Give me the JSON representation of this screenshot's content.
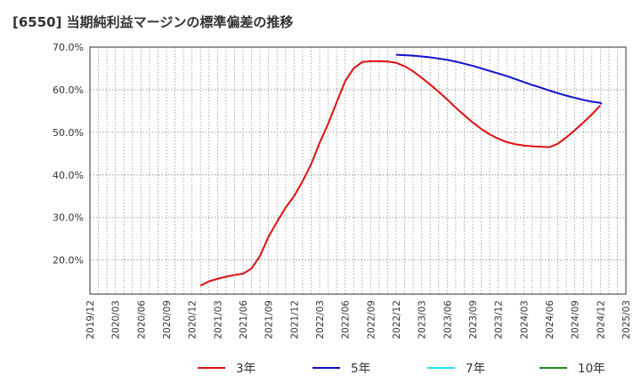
{
  "chart_data": {
    "type": "line",
    "title": "[6550]  当期純利益マージンの標準偏差の推移",
    "xlabel": "",
    "ylabel": "",
    "ylim": [
      12.0,
      70.0
    ],
    "yticks": [
      20.0,
      30.0,
      40.0,
      50.0,
      60.0,
      70.0
    ],
    "ytick_labels": [
      "20.0%",
      "30.0%",
      "40.0%",
      "50.0%",
      "60.0%",
      "70.0%"
    ],
    "x_start": "2019/12",
    "x_end": "2025/03",
    "xtick_labels": [
      "2019/12",
      "2020/03",
      "2020/06",
      "2020/09",
      "2020/12",
      "2021/03",
      "2021/06",
      "2021/09",
      "2021/12",
      "2022/03",
      "2022/06",
      "2022/09",
      "2022/12",
      "2023/03",
      "2023/06",
      "2023/09",
      "2023/12",
      "2024/03",
      "2024/06",
      "2024/09",
      "2024/12",
      "2025/03"
    ],
    "grid": true,
    "legend_position": "bottom",
    "series": [
      {
        "name": "3年",
        "color": "#dd1111",
        "points": [
          [
            "2021/01",
            14.0
          ],
          [
            "2021/02",
            15.0
          ],
          [
            "2021/03",
            15.6
          ],
          [
            "2021/04",
            16.1
          ],
          [
            "2021/05",
            16.5
          ],
          [
            "2021/06",
            16.8
          ],
          [
            "2021/07",
            18.0
          ],
          [
            "2021/08",
            21.0
          ],
          [
            "2021/09",
            25.5
          ],
          [
            "2021/10",
            29.0
          ],
          [
            "2021/11",
            32.3
          ],
          [
            "2021/12",
            35.0
          ],
          [
            "2022/01",
            38.5
          ],
          [
            "2022/02",
            42.5
          ],
          [
            "2022/03",
            47.5
          ],
          [
            "2022/04",
            52.0
          ],
          [
            "2022/05",
            57.0
          ],
          [
            "2022/06",
            62.0
          ],
          [
            "2022/07",
            65.0
          ],
          [
            "2022/08",
            66.5
          ],
          [
            "2022/09",
            66.7
          ],
          [
            "2022/10",
            66.7
          ],
          [
            "2022/11",
            66.6
          ],
          [
            "2022/12",
            66.3
          ],
          [
            "2023/01",
            65.5
          ],
          [
            "2023/02",
            64.3
          ],
          [
            "2023/03",
            62.8
          ],
          [
            "2023/04",
            61.2
          ],
          [
            "2023/05",
            59.5
          ],
          [
            "2023/06",
            57.7
          ],
          [
            "2023/07",
            55.8
          ],
          [
            "2023/08",
            54.0
          ],
          [
            "2023/09",
            52.3
          ],
          [
            "2023/10",
            50.8
          ],
          [
            "2023/11",
            49.5
          ],
          [
            "2023/12",
            48.5
          ],
          [
            "2024/01",
            47.7
          ],
          [
            "2024/02",
            47.2
          ],
          [
            "2024/03",
            46.9
          ],
          [
            "2024/04",
            46.7
          ],
          [
            "2024/05",
            46.6
          ],
          [
            "2024/06",
            46.5
          ],
          [
            "2024/07",
            47.3
          ],
          [
            "2024/08",
            48.8
          ],
          [
            "2024/09",
            50.5
          ],
          [
            "2024/10",
            52.3
          ],
          [
            "2024/11",
            54.2
          ],
          [
            "2024/12",
            56.3
          ]
        ]
      },
      {
        "name": "5年",
        "color": "#1111cc",
        "points": [
          [
            "2022/12",
            68.2
          ],
          [
            "2023/01",
            68.1
          ],
          [
            "2023/02",
            68.0
          ],
          [
            "2023/03",
            67.8
          ],
          [
            "2023/04",
            67.6
          ],
          [
            "2023/05",
            67.3
          ],
          [
            "2023/06",
            67.0
          ],
          [
            "2023/07",
            66.6
          ],
          [
            "2023/08",
            66.1
          ],
          [
            "2023/09",
            65.6
          ],
          [
            "2023/10",
            65.0
          ],
          [
            "2023/11",
            64.4
          ],
          [
            "2023/12",
            63.8
          ],
          [
            "2024/01",
            63.2
          ],
          [
            "2024/02",
            62.5
          ],
          [
            "2024/03",
            61.8
          ],
          [
            "2024/04",
            61.1
          ],
          [
            "2024/05",
            60.5
          ],
          [
            "2024/06",
            59.8
          ],
          [
            "2024/07",
            59.2
          ],
          [
            "2024/08",
            58.6
          ],
          [
            "2024/09",
            58.1
          ],
          [
            "2024/10",
            57.6
          ],
          [
            "2024/11",
            57.2
          ],
          [
            "2024/12",
            56.9
          ],
          [
            "2024/12",
            56.6
          ]
        ]
      },
      {
        "name": "7年",
        "color": "#22e5f0",
        "points": []
      },
      {
        "name": "10年",
        "color": "#228822",
        "points": []
      }
    ]
  }
}
